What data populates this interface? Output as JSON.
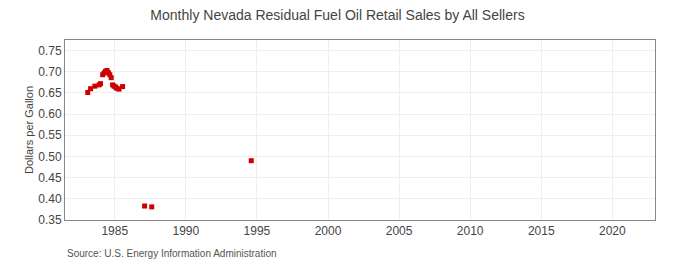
{
  "chart_data": {
    "type": "scatter",
    "title": "Monthly Nevada Residual Fuel Oil Retail Sales by All Sellers",
    "ylabel": "Dollars per Gallon",
    "annotations": [
      "Source: U.S. Energy Information Administration"
    ],
    "x": [
      1983.1,
      1983.3,
      1983.6,
      1983.9,
      1984.0,
      1984.15,
      1984.25,
      1984.35,
      1984.45,
      1984.55,
      1984.65,
      1984.75,
      1984.85,
      1984.95,
      1985.05,
      1985.15,
      1985.3,
      1985.55,
      1987.1,
      1987.6,
      1994.6
    ],
    "values": [
      0.651,
      0.66,
      0.666,
      0.669,
      0.672,
      0.693,
      0.697,
      0.701,
      0.703,
      0.698,
      0.693,
      0.686,
      0.669,
      0.666,
      0.664,
      0.661,
      0.659,
      0.665,
      0.383,
      0.381,
      0.49
    ],
    "color": "#cc0000",
    "marker": "square",
    "xlim": [
      1981.5,
      2023
    ],
    "ylim": [
      0.35,
      0.775
    ],
    "xticks": [
      1985,
      1990,
      1995,
      2000,
      2005,
      2010,
      2015,
      2020
    ],
    "yticks": [
      0.35,
      {
        "value": 0.4,
        "label": "0.40"
      },
      0.45,
      {
        "value": 0.5,
        "label": "0.50"
      },
      0.55,
      {
        "value": 0.6,
        "label": "0.60"
      },
      0.65,
      {
        "value": 0.7,
        "label": "0.70"
      },
      0.75
    ],
    "grid": true
  }
}
